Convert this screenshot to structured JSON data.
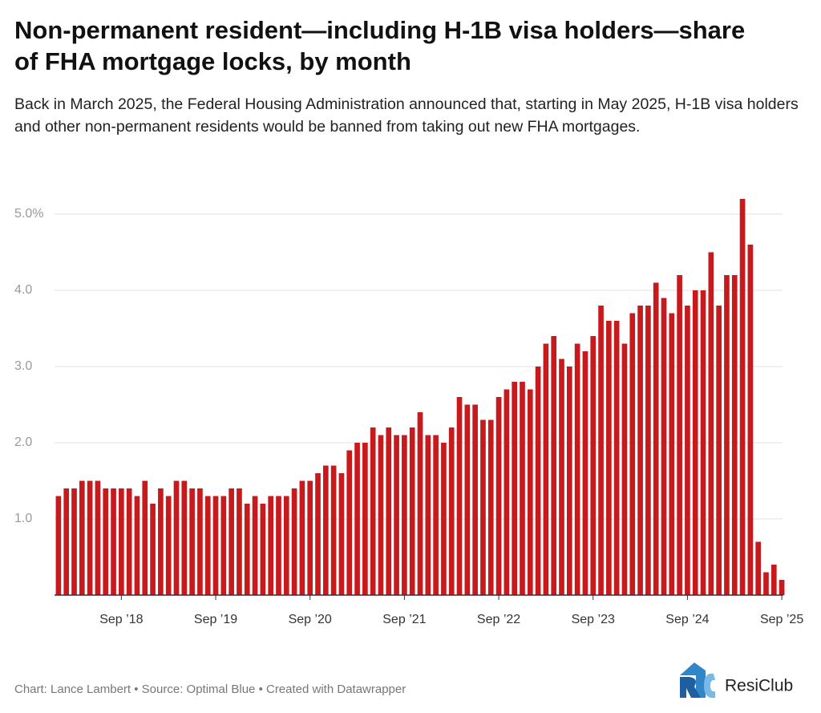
{
  "chart_data": {
    "type": "bar",
    "title": "Non-permanent resident—including H-1B visa holders—share of FHA mortgage locks, by month",
    "subtitle": "Back in March 2025, the Federal Housing Administration announced that, starting in May 2025, H-1B visa holders and other non-permanent residents would be banned from taking out new FHA mortgages.",
    "categories": [
      null,
      null,
      null,
      null,
      null,
      null,
      null,
      null,
      "Sep ’18",
      null,
      null,
      null,
      null,
      null,
      null,
      null,
      null,
      null,
      null,
      null,
      "Sep ’19",
      null,
      null,
      null,
      null,
      null,
      null,
      null,
      null,
      null,
      null,
      null,
      "Sep ’20",
      null,
      null,
      null,
      null,
      null,
      null,
      null,
      null,
      null,
      null,
      null,
      "Sep ’21",
      null,
      null,
      null,
      null,
      null,
      null,
      null,
      null,
      null,
      null,
      null,
      "Sep ’22",
      null,
      null,
      null,
      null,
      null,
      null,
      null,
      null,
      null,
      null,
      null,
      "Sep ’23",
      null,
      null,
      null,
      null,
      null,
      null,
      null,
      null,
      null,
      null,
      null,
      "Sep ’24",
      null,
      null,
      null,
      null,
      null,
      null,
      null,
      null,
      null,
      null,
      null,
      "Sep ’25"
    ],
    "values": [
      1.3,
      1.4,
      1.4,
      1.5,
      1.5,
      1.5,
      1.4,
      1.4,
      1.4,
      1.4,
      1.3,
      1.5,
      1.2,
      1.4,
      1.3,
      1.5,
      1.5,
      1.4,
      1.4,
      1.3,
      1.3,
      1.3,
      1.4,
      1.4,
      1.2,
      1.3,
      1.2,
      1.3,
      1.3,
      1.3,
      1.4,
      1.5,
      1.5,
      1.6,
      1.7,
      1.7,
      1.6,
      1.9,
      2.0,
      2.0,
      2.2,
      2.1,
      2.2,
      2.1,
      2.1,
      2.2,
      2.4,
      2.1,
      2.1,
      2.0,
      2.2,
      2.6,
      2.5,
      2.5,
      2.3,
      2.3,
      2.6,
      2.7,
      2.8,
      2.8,
      2.7,
      3.0,
      3.3,
      3.4,
      3.1,
      3.0,
      3.3,
      3.2,
      3.4,
      3.8,
      3.6,
      3.6,
      3.3,
      3.7,
      3.8,
      3.8,
      4.1,
      3.9,
      3.7,
      4.2,
      3.8,
      4.0,
      4.0,
      4.5,
      3.8,
      4.2,
      4.2,
      5.2,
      4.6,
      0.7,
      0.3,
      0.4,
      0.2
    ],
    "color": "#c8191c",
    "ylim": [
      0,
      5.3
    ],
    "yticks": [
      {
        "value": 1,
        "label": "1.0"
      },
      {
        "value": 2,
        "label": "2.0"
      },
      {
        "value": 3,
        "label": "3.0"
      },
      {
        "value": 4,
        "label": "4.0"
      },
      {
        "value": 5,
        "label": "5.0%"
      }
    ],
    "grid": true,
    "footer": "Chart: Lance Lambert • Source: Optimal Blue • Created with Datawrapper",
    "logo": "ResiClub"
  }
}
